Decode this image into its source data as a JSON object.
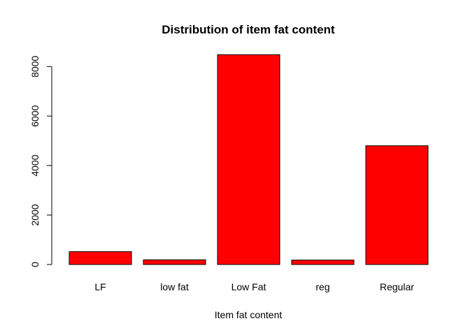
{
  "chart_data": {
    "type": "bar",
    "title": "Distribution of item fat content",
    "xlabel": "Item fat content",
    "ylabel": "",
    "categories": [
      "LF",
      "low fat",
      "Low Fat",
      "reg",
      "Regular"
    ],
    "values": [
      520,
      190,
      8480,
      180,
      4800
    ],
    "ylim": [
      0,
      8800
    ],
    "yticks": [
      0,
      2000,
      4000,
      6000,
      8000
    ],
    "bar_color": "#ff0000",
    "grid": false,
    "legend": "none"
  }
}
